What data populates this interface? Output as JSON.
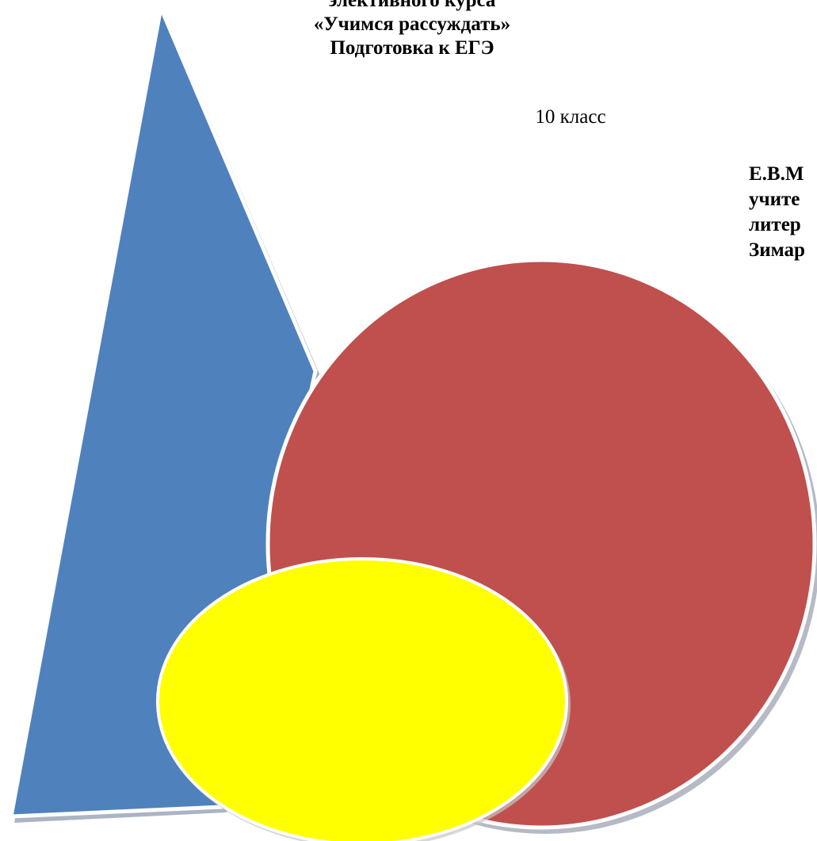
{
  "document": {
    "title_lines": [
      "элективного курса",
      "«Учимся рассуждать»",
      "Подготовка к ЕГЭ"
    ],
    "grade": "10 класс",
    "author_lines": [
      "Е.В.М",
      "учите",
      "литер",
      "Зимар"
    ]
  },
  "shapes": {
    "triangle_color": "#4f81bd",
    "circle_color": "#c0504d",
    "ellipse_color": "#ffff00",
    "outline_color": "#ffffff",
    "shadow_color": "#8f9bb0"
  }
}
